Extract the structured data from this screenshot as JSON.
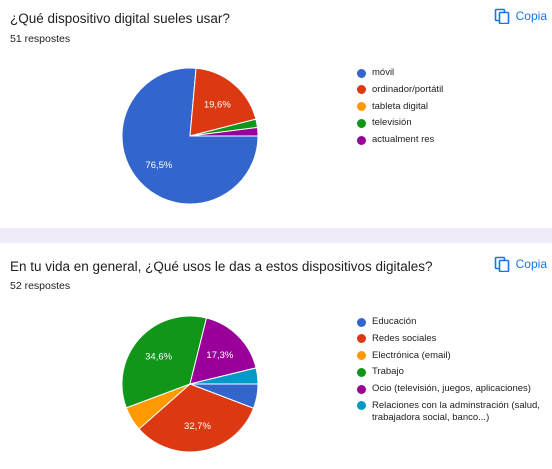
{
  "questions": [
    {
      "title": "¿Qué dispositivo digital sueles usar?",
      "responses": "51 respostes",
      "copy_label": "Copia",
      "legend": [
        {
          "label": "móvil",
          "color": "#3366cc"
        },
        {
          "label": "ordinador/portátil",
          "color": "#dc3912"
        },
        {
          "label": "tableta digital",
          "color": "#ff9900"
        },
        {
          "label": "televisión",
          "color": "#109618"
        },
        {
          "label": "actualment res",
          "color": "#990099"
        }
      ]
    },
    {
      "title": "En tu vida en general, ¿Qué usos le das a estos dispositivos digitales?",
      "responses": "52 respostes",
      "copy_label": "Copia",
      "legend": [
        {
          "label": "Educación",
          "color": "#3366cc"
        },
        {
          "label": "Redes sociales",
          "color": "#dc3912"
        },
        {
          "label": "Electrónica (email)",
          "color": "#ff9900"
        },
        {
          "label": "Trabajo",
          "color": "#109618"
        },
        {
          "label": "Ocio (televisión, juegos, aplicaciones)",
          "color": "#990099"
        },
        {
          "label": "Relaciones con la adminstración (salud, trabajadora social, banco...)",
          "color": "#0099c6"
        }
      ]
    }
  ],
  "chart_data": [
    {
      "type": "pie",
      "title": "¿Qué dispositivo digital sueles usar?",
      "categories": [
        "móvil",
        "ordinador/portátil",
        "tableta digital",
        "televisión",
        "actualment res"
      ],
      "values": [
        76.5,
        19.6,
        0,
        2.0,
        2.0
      ],
      "data_labels": [
        "76,5%",
        "19,6%",
        "",
        "",
        ""
      ],
      "colors": [
        "#3366cc",
        "#dc3912",
        "#ff9900",
        "#109618",
        "#990099"
      ],
      "legend": "right"
    },
    {
      "type": "pie",
      "title": "En tu vida en general, ¿Qué usos le das a estos dispositivos digitales?",
      "categories": [
        "Educación",
        "Redes sociales",
        "Electrónica (email)",
        "Trabajo",
        "Ocio (televisión, juegos, aplicaciones)",
        "Relaciones con la adminstración (salud, trabajadora social, banco...)"
      ],
      "values": [
        5.8,
        32.7,
        5.8,
        34.6,
        17.3,
        3.8
      ],
      "data_labels": [
        "",
        "32,7%",
        "",
        "34,6%",
        "17,3%",
        ""
      ],
      "colors": [
        "#3366cc",
        "#dc3912",
        "#ff9900",
        "#109618",
        "#990099",
        "#0099c6"
      ],
      "legend": "right"
    }
  ]
}
